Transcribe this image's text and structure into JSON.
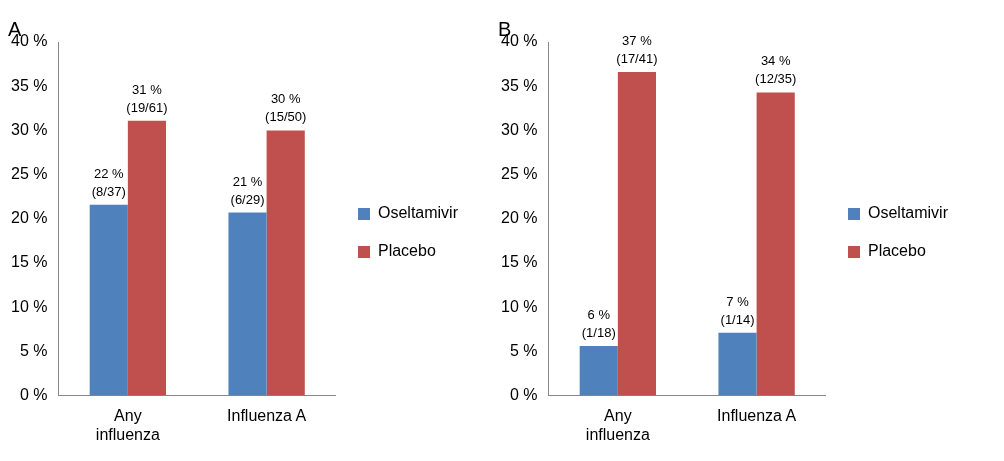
{
  "chart_data": [
    {
      "type": "bar",
      "title": "A",
      "categories": [
        "Any\ninfluenza",
        "Influenza A"
      ],
      "series": [
        {
          "name": "Oseltamivir",
          "color": "#4f81bd",
          "values": [
            21.6,
            20.7
          ],
          "value_labels": [
            "22 %\n(8/37)",
            "21 %\n(6/29)"
          ]
        },
        {
          "name": "Placebo",
          "color": "#c0504d",
          "values": [
            31.1,
            30
          ],
          "value_labels": [
            "31 %\n(19/61)",
            "30 %\n(15/50)"
          ]
        }
      ],
      "ylim": [
        0,
        40
      ],
      "yticks": [
        {
          "value": 0,
          "label": "0 %"
        },
        {
          "value": 5,
          "label": "5 %"
        },
        {
          "value": 10,
          "label": "10 %"
        },
        {
          "value": 15,
          "label": "15 %"
        },
        {
          "value": 20,
          "label": "20 %"
        },
        {
          "value": 25,
          "label": "25 %"
        },
        {
          "value": 30,
          "label": "30 %"
        },
        {
          "value": 35,
          "label": "35 %"
        },
        {
          "value": 40,
          "label": "40 %"
        }
      ],
      "grid": false,
      "legend": "right"
    },
    {
      "type": "bar",
      "title": "B",
      "categories": [
        "Any\ninfluenza",
        "Influenza A"
      ],
      "series": [
        {
          "name": "Oseltamivir",
          "color": "#4f81bd",
          "values": [
            5.6,
            7.1
          ],
          "value_labels": [
            "6 %\n(1/18)",
            "7 %\n(1/14)"
          ]
        },
        {
          "name": "Placebo",
          "color": "#c0504d",
          "values": [
            36.6,
            34.3
          ],
          "value_labels": [
            "37 %\n(17/41)",
            "34 %\n(12/35)"
          ]
        }
      ],
      "ylim": [
        0,
        40
      ],
      "yticks": [
        {
          "value": 0,
          "label": "0 %"
        },
        {
          "value": 5,
          "label": "5 %"
        },
        {
          "value": 10,
          "label": "10 %"
        },
        {
          "value": 15,
          "label": "15 %"
        },
        {
          "value": 20,
          "label": "20 %"
        },
        {
          "value": 25,
          "label": "25 %"
        },
        {
          "value": 30,
          "label": "30 %"
        },
        {
          "value": 35,
          "label": "35 %"
        },
        {
          "value": 40,
          "label": "40 %"
        }
      ],
      "grid": false,
      "legend": "right"
    }
  ]
}
